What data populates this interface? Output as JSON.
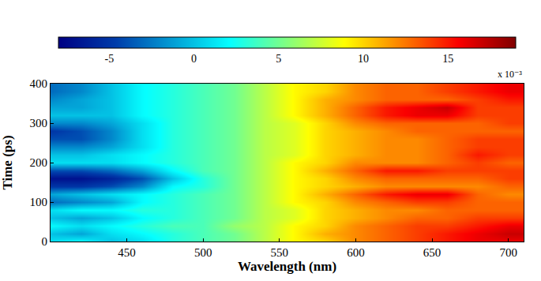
{
  "chart_data": {
    "type": "heatmap",
    "x_label": "Wavelength (nm)",
    "y_label": "Time (ps)",
    "x": [
      400,
      420,
      440,
      460,
      480,
      500,
      520,
      540,
      560,
      580,
      600,
      620,
      640,
      660,
      680,
      700
    ],
    "y": [
      0,
      20,
      40,
      60,
      80,
      100,
      120,
      140,
      160,
      180,
      200,
      220,
      240,
      260,
      280,
      300,
      320,
      340,
      360,
      380,
      400
    ],
    "cells": [
      [
        1,
        2,
        0,
        1,
        3,
        4,
        5,
        7,
        9,
        10,
        12,
        13,
        14,
        15,
        16,
        16
      ],
      [
        0,
        -1,
        1,
        2,
        3,
        4,
        5,
        7,
        9,
        11,
        12,
        13,
        14,
        15,
        16,
        17
      ],
      [
        2,
        1,
        2,
        3,
        4,
        4,
        6,
        7,
        9,
        10,
        12,
        13,
        14,
        14,
        15,
        16
      ],
      [
        0,
        -1,
        0,
        2,
        3,
        4,
        5,
        7,
        8,
        10,
        11,
        12,
        13,
        13,
        14,
        14
      ],
      [
        1,
        2,
        2,
        3,
        3,
        4,
        5,
        7,
        8,
        10,
        11,
        12,
        12,
        13,
        13,
        13
      ],
      [
        -3,
        -2,
        -1,
        2,
        3,
        4,
        5,
        7,
        9,
        10,
        12,
        13,
        14,
        14,
        13,
        13
      ],
      [
        -1,
        0,
        1,
        2,
        3,
        4,
        5,
        7,
        9,
        11,
        13,
        15,
        16,
        16,
        13,
        12
      ],
      [
        -5,
        -5,
        -4,
        -2,
        2,
        3,
        5,
        7,
        9,
        10,
        11,
        12,
        12,
        12,
        12,
        13
      ],
      [
        -7,
        -7,
        -6,
        -4,
        0,
        3,
        5,
        7,
        9,
        10,
        12,
        13,
        13,
        13,
        13,
        14
      ],
      [
        -4,
        -4,
        -3,
        -1,
        2,
        4,
        5,
        7,
        9,
        11,
        13,
        15,
        15,
        14,
        14,
        14
      ],
      [
        1,
        1,
        1,
        2,
        3,
        4,
        5,
        7,
        9,
        10,
        12,
        12,
        12,
        13,
        14,
        13
      ],
      [
        0,
        0,
        1,
        2,
        3,
        4,
        5,
        7,
        8,
        10,
        11,
        12,
        12,
        13,
        15,
        14
      ],
      [
        -2,
        -2,
        -1,
        1,
        3,
        4,
        5,
        7,
        8,
        10,
        11,
        12,
        12,
        13,
        14,
        14
      ],
      [
        -4,
        -4,
        -2,
        1,
        3,
        4,
        5,
        7,
        8,
        10,
        11,
        12,
        12,
        13,
        14,
        14
      ],
      [
        -5,
        -4,
        -2,
        1,
        3,
        4,
        5,
        7,
        8,
        10,
        11,
        12,
        13,
        13,
        13,
        13
      ],
      [
        -2,
        -2,
        -1,
        1,
        3,
        4,
        5,
        7,
        8,
        10,
        12,
        13,
        13,
        13,
        13,
        14
      ],
      [
        0,
        0,
        0,
        2,
        3,
        4,
        5,
        7,
        9,
        11,
        13,
        15,
        16,
        16,
        14,
        14
      ],
      [
        -1,
        -1,
        0,
        2,
        3,
        4,
        5,
        7,
        9,
        11,
        13,
        15,
        16,
        17,
        14,
        14
      ],
      [
        -2,
        -1,
        0,
        2,
        3,
        4,
        5,
        7,
        9,
        11,
        12,
        13,
        13,
        13,
        14,
        15
      ],
      [
        -3,
        -2,
        0,
        2,
        3,
        4,
        5,
        7,
        9,
        10,
        12,
        13,
        13,
        14,
        15,
        16
      ],
      [
        -3,
        -2,
        0,
        2,
        3,
        4,
        5,
        7,
        9,
        10,
        12,
        13,
        13,
        14,
        15,
        16
      ]
    ],
    "xlim": [
      400,
      710
    ],
    "xticks": [
      450,
      500,
      550,
      600,
      650,
      700
    ],
    "ylim": [
      0,
      400
    ],
    "yticks": [
      0,
      100,
      200,
      300,
      400
    ],
    "colorbar": {
      "range": [
        -8,
        19
      ],
      "ticks": [
        -5,
        0,
        5,
        10,
        15
      ],
      "label": "x 10⁻³"
    },
    "color": "Jet"
  }
}
